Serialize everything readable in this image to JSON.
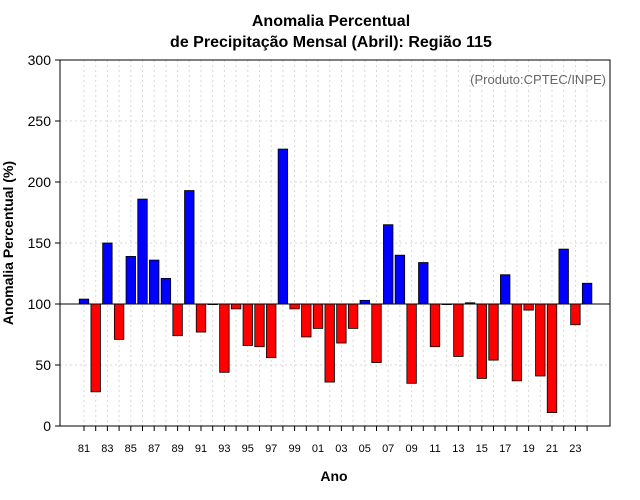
{
  "chart_data": {
    "type": "bar",
    "title": "Anomalia Percentual",
    "subtitle": "de Precipitação Mensal (Abril): Região 115",
    "xlabel": "Ano",
    "ylabel": "Anomalia Percentual (%)",
    "annotation": "(Produto:CPTEC/INPE)",
    "ylim": [
      0,
      300
    ],
    "yticks": [
      0,
      50,
      100,
      150,
      200,
      250,
      300
    ],
    "baseline": 100,
    "colors": {
      "above": "#0000ff",
      "below": "#ff0000"
    },
    "categories": [
      "81",
      "82",
      "83",
      "84",
      "85",
      "86",
      "87",
      "88",
      "89",
      "90",
      "91",
      "92",
      "93",
      "94",
      "95",
      "96",
      "97",
      "98",
      "99",
      "00",
      "01",
      "02",
      "03",
      "04",
      "05",
      "06",
      "07",
      "08",
      "09",
      "10",
      "11",
      "12",
      "13",
      "14",
      "15",
      "16",
      "17",
      "18",
      "19",
      "20",
      "21",
      "22",
      "23",
      "24"
    ],
    "tick_labels": [
      "81",
      "83",
      "85",
      "87",
      "89",
      "91",
      "93",
      "95",
      "97",
      "99",
      "01",
      "03",
      "05",
      "07",
      "09",
      "11",
      "13",
      "15",
      "17",
      "19",
      "21",
      "23"
    ],
    "values": [
      104,
      28,
      150,
      71,
      139,
      186,
      136,
      121,
      74,
      193,
      77,
      100,
      44,
      96,
      66,
      65,
      56,
      227,
      96,
      73,
      80,
      36,
      68,
      80,
      103,
      52,
      165,
      140,
      35,
      134,
      65,
      100,
      57,
      101,
      39,
      54,
      124,
      37,
      95,
      41,
      11,
      145,
      83,
      117
    ]
  }
}
